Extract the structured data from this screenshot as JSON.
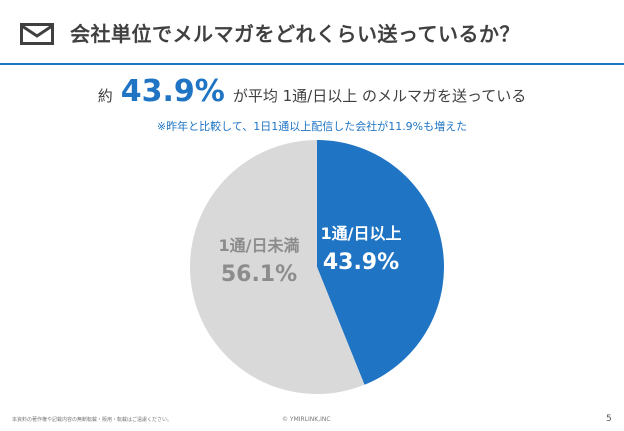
{
  "header": {
    "title": "会社単位でメルマガをどれくらい送っているか？",
    "icon": "mail-icon"
  },
  "headline": {
    "pre": "約",
    "big": "43.9%",
    "post": "が平均 1通/日以上 のメルマガを送っている"
  },
  "note": "※昨年と比較して、1日1通以上配信した会社が11.9%も増えた",
  "chart_data": {
    "type": "pie",
    "slices": [
      {
        "label": "1通/日以上",
        "value": 43.9,
        "value_label": "43.9%",
        "color": "#1f74c4",
        "text_color": "#ffffff"
      },
      {
        "label": "1通/日未満",
        "value": 56.1,
        "value_label": "56.1%",
        "color": "#d9d9d9",
        "text_color": "#8c8c8c"
      }
    ],
    "start": "12 o'clock",
    "direction": "clockwise"
  },
  "footer": {
    "left": "本資料の著作権や記載内容の無断転載・販用・転載はご遠慮ください。",
    "center": "© YMIRLINK,INC",
    "page": "5"
  }
}
